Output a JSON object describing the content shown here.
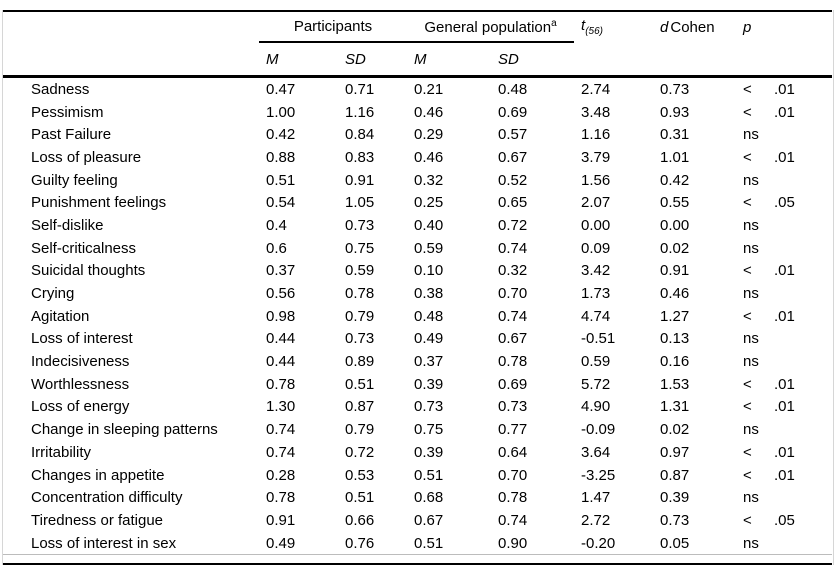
{
  "table": {
    "groups": {
      "participants": "Participants",
      "general_population": "General population",
      "general_population_note": "a"
    },
    "stat_headers": {
      "t_symbol": "t",
      "t_subscript": "(56)",
      "d_symbol": "d",
      "d_word": "Cohen",
      "p_symbol": "p"
    },
    "sub_headers": {
      "m": "M",
      "sd": "SD"
    },
    "rows": [
      {
        "label": "Sadness",
        "p_m": "0.47",
        "p_sd": "0.71",
        "g_m": "0.21",
        "g_sd": "0.48",
        "t": "2.74",
        "d": "0.73",
        "p_sign": "<",
        "p_val": ".01"
      },
      {
        "label": "Pessimism",
        "p_m": "1.00",
        "p_sd": "1.16",
        "g_m": "0.46",
        "g_sd": "0.69",
        "t": "3.48",
        "d": "0.93",
        "p_sign": "<",
        "p_val": ".01"
      },
      {
        "label": "Past Failure",
        "p_m": "0.42",
        "p_sd": "0.84",
        "g_m": "0.29",
        "g_sd": "0.57",
        "t": "1.16",
        "d": "0.31",
        "p_sign": "ns",
        "p_val": ""
      },
      {
        "label": "Loss of pleasure",
        "p_m": "0.88",
        "p_sd": "0.83",
        "g_m": "0.46",
        "g_sd": "0.67",
        "t": "3.79",
        "d": "1.01",
        "p_sign": "<",
        "p_val": ".01"
      },
      {
        "label": "Guilty feeling",
        "p_m": "0.51",
        "p_sd": "0.91",
        "g_m": "0.32",
        "g_sd": "0.52",
        "t": "1.56",
        "d": "0.42",
        "p_sign": "ns",
        "p_val": ""
      },
      {
        "label": "Punishment feelings",
        "p_m": "0.54",
        "p_sd": "1.05",
        "g_m": "0.25",
        "g_sd": "0.65",
        "t": "2.07",
        "d": "0.55",
        "p_sign": "<",
        "p_val": ".05"
      },
      {
        "label": "Self-dislike",
        "p_m": "0.4",
        "p_sd": "0.73",
        "g_m": "0.40",
        "g_sd": "0.72",
        "t": "0.00",
        "d": "0.00",
        "p_sign": "ns",
        "p_val": ""
      },
      {
        "label": "Self-criticalness",
        "p_m": "0.6",
        "p_sd": "0.75",
        "g_m": "0.59",
        "g_sd": "0.74",
        "t": "0.09",
        "d": "0.02",
        "p_sign": "ns",
        "p_val": ""
      },
      {
        "label": "Suicidal thoughts",
        "p_m": "0.37",
        "p_sd": "0.59",
        "g_m": "0.10",
        "g_sd": "0.32",
        "t": "3.42",
        "d": "0.91",
        "p_sign": "<",
        "p_val": ".01"
      },
      {
        "label": "Crying",
        "p_m": "0.56",
        "p_sd": "0.78",
        "g_m": "0.38",
        "g_sd": "0.70",
        "t": "1.73",
        "d": "0.46",
        "p_sign": "ns",
        "p_val": ""
      },
      {
        "label": "Agitation",
        "p_m": "0.98",
        "p_sd": "0.79",
        "g_m": "0.48",
        "g_sd": "0.74",
        "t": "4.74",
        "d": "1.27",
        "p_sign": "<",
        "p_val": ".01"
      },
      {
        "label": "Loss of interest",
        "p_m": "0.44",
        "p_sd": "0.73",
        "g_m": "0.49",
        "g_sd": "0.67",
        "t": "-0.51",
        "d": "0.13",
        "p_sign": "ns",
        "p_val": ""
      },
      {
        "label": "Indecisiveness",
        "p_m": "0.44",
        "p_sd": "0.89",
        "g_m": "0.37",
        "g_sd": "0.78",
        "t": "0.59",
        "d": "0.16",
        "p_sign": "ns",
        "p_val": ""
      },
      {
        "label": "Worthlessness",
        "p_m": "0.78",
        "p_sd": "0.51",
        "g_m": "0.39",
        "g_sd": "0.69",
        "t": "5.72",
        "d": "1.53",
        "p_sign": "<",
        "p_val": ".01"
      },
      {
        "label": "Loss of energy",
        "p_m": "1.30",
        "p_sd": "0.87",
        "g_m": "0.73",
        "g_sd": "0.73",
        "t": "4.90",
        "d": "1.31",
        "p_sign": "<",
        "p_val": ".01"
      },
      {
        "label": "Change in sleeping patterns",
        "p_m": "0.74",
        "p_sd": "0.79",
        "g_m": "0.75",
        "g_sd": "0.77",
        "t": "-0.09",
        "d": "0.02",
        "p_sign": "ns",
        "p_val": ""
      },
      {
        "label": "Irritability",
        "p_m": "0.74",
        "p_sd": "0.72",
        "g_m": "0.39",
        "g_sd": "0.64",
        "t": "3.64",
        "d": "0.97",
        "p_sign": "<",
        "p_val": ".01"
      },
      {
        "label": "Changes in appetite",
        "p_m": "0.28",
        "p_sd": "0.53",
        "g_m": "0.51",
        "g_sd": "0.70",
        "t": "-3.25",
        "d": "0.87",
        "p_sign": "<",
        "p_val": ".01"
      },
      {
        "label": "Concentration difficulty",
        "p_m": "0.78",
        "p_sd": "0.51",
        "g_m": "0.68",
        "g_sd": "0.78",
        "t": "1.47",
        "d": "0.39",
        "p_sign": "ns",
        "p_val": ""
      },
      {
        "label": "Tiredness or fatigue",
        "p_m": "0.91",
        "p_sd": "0.66",
        "g_m": "0.67",
        "g_sd": "0.74",
        "t": "2.72",
        "d": "0.73",
        "p_sign": "<",
        "p_val": ".05"
      },
      {
        "label": "Loss of interest in sex",
        "p_m": "0.49",
        "p_sd": "0.76",
        "g_m": "0.51",
        "g_sd": "0.90",
        "t": "-0.20",
        "d": "0.05",
        "p_sign": "ns",
        "p_val": ""
      }
    ]
  }
}
